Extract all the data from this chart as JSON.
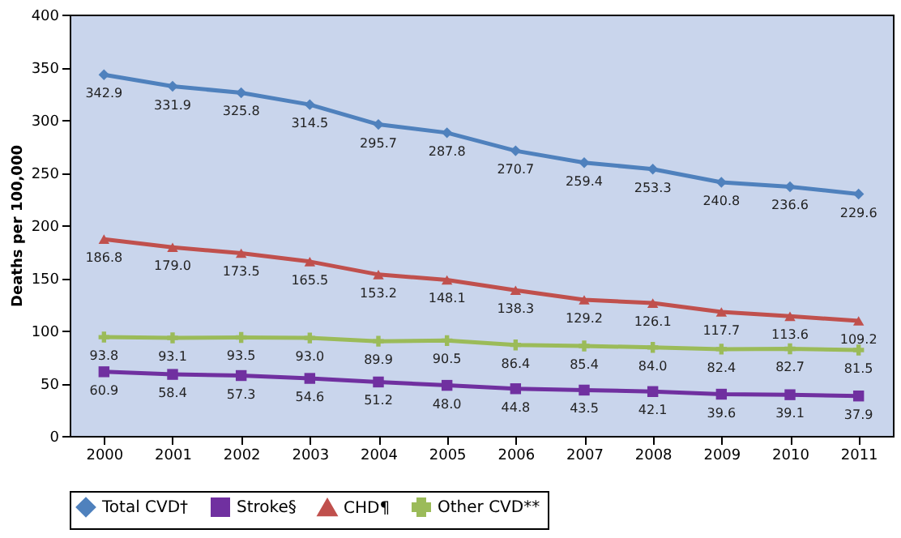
{
  "chart_data": {
    "type": "line",
    "ylabel": "Deaths per 100,000",
    "categories": [
      "2000",
      "2001",
      "2002",
      "2003",
      "2004",
      "2005",
      "2006",
      "2007",
      "2008",
      "2009",
      "2010",
      "2011"
    ],
    "series": [
      {
        "name": "Total CVD†",
        "color": "#4f81bd",
        "marker": "diamond",
        "values": [
          342.9,
          331.9,
          325.8,
          314.5,
          295.7,
          287.8,
          270.7,
          259.4,
          253.3,
          240.8,
          236.6,
          229.6
        ],
        "value_labels": [
          "342.9",
          "331.9",
          "325.8",
          "314.5",
          "295.7",
          "287.8",
          "270.7",
          "259.4",
          "253.3",
          "240.8",
          "236.6",
          "229.6"
        ]
      },
      {
        "name": "Stroke§",
        "color": "#7030a0",
        "marker": "square",
        "values": [
          60.9,
          58.4,
          57.3,
          54.6,
          51.2,
          48.0,
          44.8,
          43.5,
          42.1,
          39.6,
          39.1,
          37.9
        ],
        "value_labels": [
          "60.9",
          "58.4",
          "57.3",
          "54.6",
          "51.2",
          "48.0",
          "44.8",
          "43.5",
          "42.1",
          "39.6",
          "39.1",
          "37.9"
        ]
      },
      {
        "name": "CHD¶",
        "color": "#c0504d",
        "marker": "triangle",
        "values": [
          186.8,
          179.0,
          173.5,
          165.5,
          153.2,
          148.1,
          138.3,
          129.2,
          126.1,
          117.7,
          113.6,
          109.2
        ],
        "value_labels": [
          "186.8",
          "179.0",
          "173.5",
          "165.5",
          "153.2",
          "148.1",
          "138.3",
          "129.2",
          "126.1",
          "117.7",
          "113.6",
          "109.2"
        ]
      },
      {
        "name": "Other CVD**",
        "color": "#9bbb59",
        "marker": "cross",
        "values": [
          93.8,
          93.1,
          93.5,
          93.0,
          89.9,
          90.5,
          86.4,
          85.4,
          84.0,
          82.4,
          82.7,
          81.5
        ],
        "value_labels": [
          "93.8",
          "93.1",
          "93.5",
          "93.0",
          "89.9",
          "90.5",
          "86.4",
          "85.4",
          "84.0",
          "82.4",
          "82.7",
          "81.5"
        ]
      }
    ],
    "ylim": [
      0,
      400
    ],
    "yticks": [
      0,
      50,
      100,
      150,
      200,
      250,
      300,
      350,
      400
    ],
    "grid": false,
    "legend": "bottom",
    "line_style": "solid"
  }
}
